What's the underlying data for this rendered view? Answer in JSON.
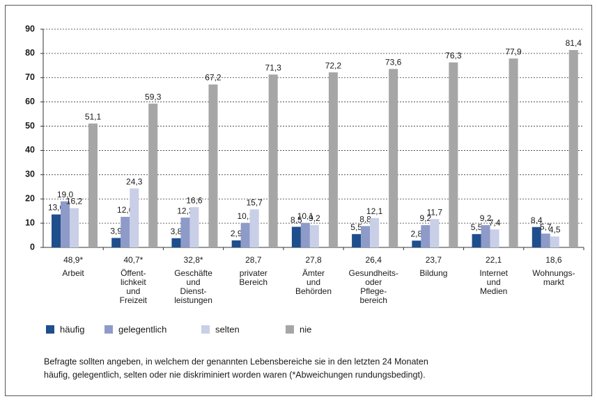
{
  "chart_data": {
    "type": "bar",
    "categories": [
      [
        "Arbeit"
      ],
      [
        "Öffent-",
        "lichkeit",
        "und",
        "Freizeit"
      ],
      [
        "Geschäfte",
        "und",
        "Dienst-",
        "leistungen"
      ],
      [
        "privater",
        "Bereich"
      ],
      [
        "Ämter",
        "und",
        "Behörden"
      ],
      [
        "Gesundheits-",
        "oder",
        "Pflege-",
        "bereich"
      ],
      [
        "Bildung"
      ],
      [
        "Internet",
        "und",
        "Medien"
      ],
      [
        "Wohnungs-",
        "markt"
      ]
    ],
    "category_notes": [
      "48,9*",
      "40,7*",
      "32,8*",
      "28,7",
      "27,8",
      "26,4",
      "23,7",
      "22,1",
      "18,6"
    ],
    "series": [
      {
        "name": "häufig",
        "color": "#1f4e8c",
        "values": [
          13.6,
          3.9,
          3.8,
          2.9,
          8.5,
          5.5,
          2.8,
          5.5,
          8.4
        ],
        "value_labels": [
          "13,6",
          "3,9",
          "3,8",
          "2,9",
          "8,5",
          "5,5",
          "2,8",
          "5,5",
          "8,4"
        ]
      },
      {
        "name": "gelegentlich",
        "color": "#8e9bc9",
        "values": [
          19.0,
          12.6,
          12.3,
          10.1,
          10.1,
          8.8,
          9.2,
          9.2,
          5.7
        ],
        "value_labels": [
          "19,0",
          "12,6",
          "12,3",
          "10,1",
          "10,1",
          "8,8",
          "9,2",
          "9,2",
          "5,7"
        ]
      },
      {
        "name": "selten",
        "color": "#c9cfe7",
        "values": [
          16.2,
          24.3,
          16.6,
          15.7,
          9.2,
          12.1,
          11.7,
          7.4,
          4.5
        ],
        "value_labels": [
          "16,2",
          "24,3",
          "16,6",
          "15,7",
          "9,2",
          "12,1",
          "11,7",
          "7,4",
          "4,5"
        ]
      },
      {
        "name": "nie",
        "color": "#a6a6a6",
        "values": [
          51.1,
          59.3,
          67.2,
          71.3,
          72.2,
          73.6,
          76.3,
          77.9,
          81.4
        ],
        "value_labels": [
          "51,1",
          "59,3",
          "67,2",
          "71,3",
          "72,2",
          "73,6",
          "76,3",
          "77,9",
          "81,4"
        ]
      }
    ],
    "ylim": [
      0,
      90
    ],
    "yticks": [
      0,
      10,
      20,
      30,
      40,
      50,
      60,
      70,
      80,
      90
    ],
    "grid": true,
    "note": [
      "Befragte sollten angeben, in welchem der genannten Lebensbereiche sie in den letzten 24 Monaten",
      "häufig, gelegentlich, selten oder nie diskriminiert worden waren (*Abweichungen rundungsbedingt)."
    ]
  }
}
